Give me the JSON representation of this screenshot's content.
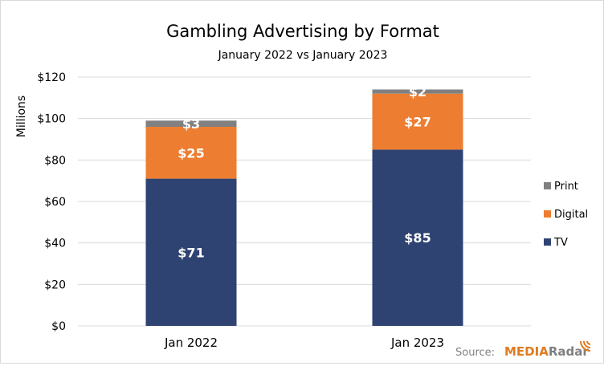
{
  "chart_data": {
    "type": "bar",
    "stacked": true,
    "title": "Gambling Advertising by Format",
    "subtitle": "January 2022 vs January 2023",
    "ylabel": "Millions",
    "categories": [
      "Jan 2022",
      "Jan 2023"
    ],
    "ylim": [
      0,
      120
    ],
    "yticks": [
      "$0",
      "$20",
      "$40",
      "$60",
      "$80",
      "$100",
      "$120"
    ],
    "yticks_values": [
      0,
      20,
      40,
      60,
      80,
      100,
      120
    ],
    "grid": true,
    "legend_position": "right",
    "series": [
      {
        "name": "TV",
        "color": "#2e4372",
        "values": [
          71,
          85
        ],
        "labels": [
          "$71",
          "$85"
        ]
      },
      {
        "name": "Digital",
        "color": "#ed7d31",
        "values": [
          25,
          27
        ],
        "labels": [
          "$25",
          "$27"
        ]
      },
      {
        "name": "Print",
        "color": "#808080",
        "values": [
          3,
          2
        ],
        "labels": [
          "$3",
          "$2"
        ]
      }
    ]
  },
  "source": {
    "label": "Source:",
    "brand_part1": "MEDIA",
    "brand_part2": "Radar"
  }
}
